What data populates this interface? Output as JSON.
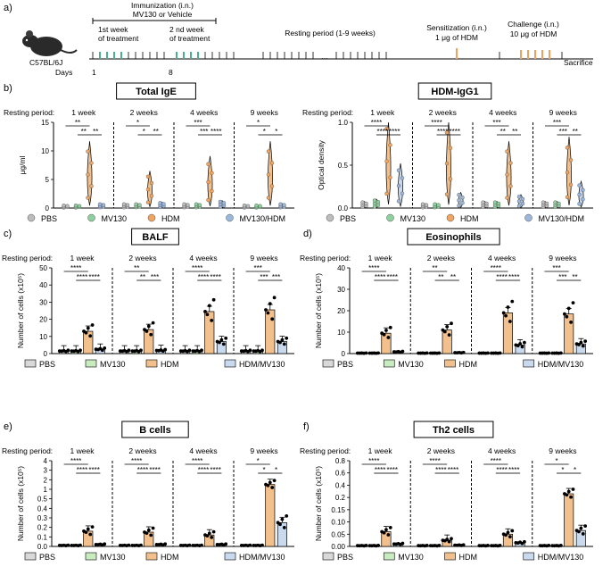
{
  "timeline": {
    "panel_letter": "a)",
    "immunization": "Immunization (i.n.)",
    "immunization_sub": "MV130 or Vehicle",
    "week1_a": "1st week",
    "week1_b": "of treatment",
    "week2_a": "2 nd week",
    "week2_b": "of treatment",
    "resting": "Resting period (1-9 weeks)",
    "dots": "...",
    "sens_a": "Sensitization (i.n.)",
    "sens_b": "1 μg of HDM",
    "chal_a": "Challenge (i.n.)",
    "chal_b": "10 μg of HDM",
    "sacrifice": "Sacrifice",
    "mouse_strain": "C57BL/6J",
    "days_label": "Days",
    "day1": "1",
    "day8": "8",
    "colors": {
      "treatment": "#4cae8c",
      "hdm": "#f0a15a"
    }
  },
  "group_colors": {
    "PBS": "#d9d9d9",
    "MV130": "#c8ecc0",
    "HDM": "#f2c08c",
    "MV130/HDM": "#c9d9ee"
  },
  "marker_colors": {
    "PBS": "#bdbdbd",
    "MV130": "#8fd19e",
    "HDM": "#f0a562",
    "MV130/HDM": "#9cb7dc"
  },
  "resting_label": "Resting period:",
  "resting_weeks": [
    "1 week",
    "2 weeks",
    "4 weeks",
    "9 weeks"
  ],
  "chart_data": [
    {
      "panel": "b)",
      "title": "Total IgE",
      "type": "violin",
      "ylabel": "μg/ml",
      "ylim": [
        0,
        15
      ],
      "yticks": [
        "0",
        "5",
        "10",
        "15"
      ],
      "legend": [
        "PBS",
        "MV130",
        "HDM",
        "MV130/HDM"
      ],
      "series": [
        {
          "group": "PBS",
          "values": [
            0.2,
            0.3,
            0.3,
            0.2
          ]
        },
        {
          "group": "MV130",
          "values": [
            0.2,
            0.3,
            0.3,
            0.2
          ]
        },
        {
          "group": "HDM",
          "values": [
            4.5,
            2.5,
            3.5,
            4.5
          ]
        },
        {
          "group": "MV130/HDM",
          "values": [
            0.3,
            0.4,
            0.5,
            0.3
          ]
        }
      ],
      "significance": [
        [
          "**",
          "**",
          "**"
        ],
        [
          "*",
          "*",
          "**"
        ],
        [
          "***",
          "***",
          "****"
        ],
        [
          "*",
          "*",
          "*"
        ]
      ]
    },
    {
      "panel": "",
      "title": "HDM-IgG1",
      "type": "violin",
      "ylabel": "Optical density",
      "ylim": [
        0,
        1.0
      ],
      "yticks": [
        "0.0",
        "0.5",
        "1.0"
      ],
      "legend": [
        "PBS",
        "MV130",
        "HDM",
        "MV130/HDM"
      ],
      "series": [
        {
          "group": "PBS",
          "values": [
            0.03,
            0.02,
            0.03,
            0.03
          ]
        },
        {
          "group": "MV130",
          "values": [
            0.04,
            0.02,
            0.03,
            0.03
          ]
        },
        {
          "group": "HDM",
          "values": [
            0.42,
            0.4,
            0.3,
            0.32
          ]
        },
        {
          "group": "MV130/HDM",
          "values": [
            0.2,
            0.07,
            0.06,
            0.12
          ]
        }
      ],
      "significance": [
        [
          "****",
          "****",
          "****"
        ],
        [
          "****",
          "****",
          "****"
        ],
        [
          "***",
          "**",
          "**"
        ],
        [
          "***",
          "***",
          "**"
        ]
      ]
    },
    {
      "panel": "c)",
      "title": "BALF",
      "type": "bar",
      "ylabel": "Number of cells (x10⁵)",
      "ylim": [
        0,
        50
      ],
      "yticks": [
        "0",
        "10",
        "20",
        "30",
        "40",
        "50"
      ],
      "legend": [
        "PBS",
        "MV130",
        "HDM",
        "HDM/MV130"
      ],
      "series": [
        {
          "group": "PBS",
          "values": [
            1.5,
            1.5,
            1.5,
            1.5
          ]
        },
        {
          "group": "MV130",
          "values": [
            1.5,
            1.5,
            1.5,
            1.5
          ]
        },
        {
          "group": "HDM",
          "values": [
            13,
            14,
            24.5,
            25.5
          ]
        },
        {
          "group": "MV130/HDM",
          "values": [
            2.5,
            1.8,
            7,
            7
          ]
        }
      ],
      "significance": [
        [
          "****",
          "****",
          "****"
        ],
        [
          "**",
          "**",
          "***"
        ],
        [
          "****",
          "****",
          "****"
        ],
        [
          "***",
          "***",
          "***"
        ]
      ]
    },
    {
      "panel": "d)",
      "title": "Eosinophils",
      "type": "bar",
      "ylabel": "Number of cells (x10⁵)",
      "ylim": [
        0,
        40
      ],
      "yticks": [
        "0",
        "10",
        "20",
        "30",
        "40"
      ],
      "legend": [
        "PBS",
        "MV130",
        "HDM",
        "HDM/MV130"
      ],
      "series": [
        {
          "group": "PBS",
          "values": [
            0.2,
            0.2,
            0.2,
            0.2
          ]
        },
        {
          "group": "MV130",
          "values": [
            0.2,
            0.2,
            0.2,
            0.2
          ]
        },
        {
          "group": "HDM",
          "values": [
            9.5,
            11,
            19,
            18.5
          ]
        },
        {
          "group": "MV130/HDM",
          "values": [
            0.8,
            0.4,
            4,
            4.5
          ]
        }
      ],
      "significance": [
        [
          "****",
          "****",
          "****"
        ],
        [
          "**",
          "**",
          "**"
        ],
        [
          "****",
          "****",
          "****"
        ],
        [
          "***",
          "***",
          "**"
        ]
      ]
    },
    {
      "panel": "e)",
      "title": "B cells",
      "type": "bar",
      "ylabel": "Number of cells (x10⁵)",
      "ylim": [
        0,
        4
      ],
      "yticks": [
        "0.0",
        "0.1",
        "0.2",
        "0.3",
        "0.4",
        "0.5",
        "1",
        "2",
        "3",
        "4"
      ],
      "legend": [
        "PBS",
        "MV130",
        "HDM",
        "HDM/MV130"
      ],
      "series": [
        {
          "group": "PBS",
          "values": [
            0.01,
            0.01,
            0.01,
            0.01
          ]
        },
        {
          "group": "MV130",
          "values": [
            0.01,
            0.01,
            0.01,
            0.01
          ]
        },
        {
          "group": "HDM",
          "values": [
            0.16,
            0.15,
            0.12,
            1.5
          ]
        },
        {
          "group": "MV130/HDM",
          "values": [
            0.02,
            0.02,
            0.02,
            0.25
          ]
        }
      ],
      "significance": [
        [
          "****",
          "****",
          "****"
        ],
        [
          "****",
          "****",
          "****"
        ],
        [
          "****",
          "****",
          "****"
        ],
        [
          "*",
          "*",
          "*"
        ]
      ]
    },
    {
      "panel": "f)",
      "title": "Th2 cells",
      "type": "bar",
      "ylabel": "Number of cells (x10⁵)",
      "ylim": [
        0,
        0.8
      ],
      "yticks": [
        "0.00",
        "0.05",
        "0.10",
        "0.15",
        "0.2",
        "0.4",
        "0.6",
        "0.8"
      ],
      "legend": [
        "PBS",
        "MV130",
        "HDM",
        "HDM/MV130"
      ],
      "series": [
        {
          "group": "PBS",
          "values": [
            0.003,
            0.003,
            0.003,
            0.003
          ]
        },
        {
          "group": "MV130",
          "values": [
            0.003,
            0.003,
            0.003,
            0.003
          ]
        },
        {
          "group": "HDM",
          "values": [
            0.06,
            0.025,
            0.05,
            0.26
          ]
        },
        {
          "group": "MV130/HDM",
          "values": [
            0.01,
            0.005,
            0.015,
            0.065
          ]
        }
      ],
      "significance": [
        [
          "****",
          "****",
          "****"
        ],
        [
          "****",
          "****",
          "****"
        ],
        [
          "****",
          "****",
          "****"
        ],
        [
          "*",
          "*",
          "*"
        ]
      ]
    }
  ]
}
